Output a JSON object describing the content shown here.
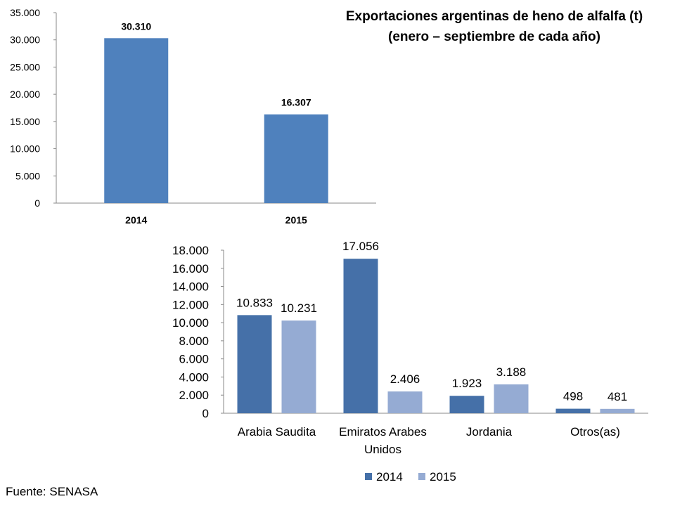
{
  "title_line1": "Exportaciones argentinas de heno de alfalfa (t)",
  "title_line2": "(enero – septiembre de cada año)",
  "source": "Fuente: SENASA",
  "colors": {
    "top_bar": "#4f81bd",
    "series_2014": "#4570a8",
    "series_2015": "#95abd3",
    "axis": "#888888"
  },
  "chart_data": [
    {
      "type": "bar",
      "categories": [
        "2014",
        "2015"
      ],
      "values": [
        30310,
        16307
      ],
      "value_labels": [
        "30.310",
        "16.307"
      ],
      "ylim": [
        0,
        35000
      ],
      "yticks": [
        0,
        5000,
        10000,
        15000,
        20000,
        25000,
        30000,
        35000
      ],
      "ytick_labels": [
        "0",
        "5.000",
        "10.000",
        "15.000",
        "20.000",
        "25.000",
        "30.000",
        "35.000"
      ],
      "grid": false
    },
    {
      "type": "bar",
      "categories": [
        [
          "Arabia Saudita"
        ],
        [
          "Emiratos Arabes",
          "Unidos"
        ],
        [
          "Jordania"
        ],
        [
          "Otros(as)"
        ]
      ],
      "series": [
        {
          "name": "2014",
          "values": [
            10833,
            17056,
            1923,
            498
          ],
          "value_labels": [
            "10.833",
            "17.056",
            "1.923",
            "498"
          ]
        },
        {
          "name": "2015",
          "values": [
            10231,
            2406,
            3188,
            481
          ],
          "value_labels": [
            "10.231",
            "2.406",
            "3.188",
            "481"
          ]
        }
      ],
      "ylim": [
        0,
        18000
      ],
      "yticks": [
        0,
        2000,
        4000,
        6000,
        8000,
        10000,
        12000,
        14000,
        16000,
        18000
      ],
      "ytick_labels": [
        "0",
        "2.000",
        "4.000",
        "6.000",
        "8.000",
        "10.000",
        "12.000",
        "14.000",
        "16.000",
        "18.000"
      ],
      "legend": "bottom",
      "grid": false
    }
  ]
}
